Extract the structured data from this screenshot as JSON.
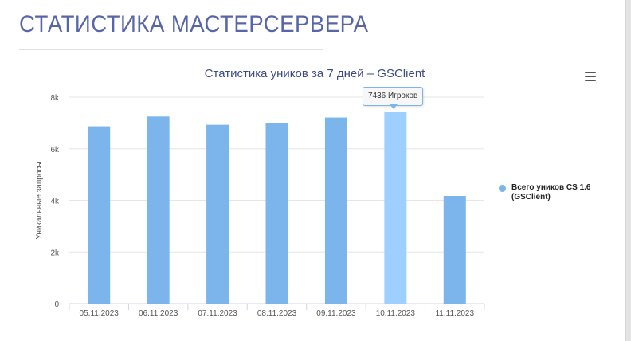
{
  "page": {
    "title": "СТАТИСТИКА МАСТЕРСЕРВЕРА"
  },
  "chart_menu": {
    "icon": "hamburger-menu-icon"
  },
  "tooltip": {
    "text": "7436 Игроков",
    "category_index": 5
  },
  "colors": {
    "bar": "#7cb5ec",
    "bar_hover": "#9dd0ff",
    "title": "#5866a8",
    "chart_title": "#3c4a85"
  },
  "chart_data": {
    "type": "bar",
    "title": "Статистика уников за 7 дней – GSClient",
    "xlabel": "",
    "ylabel": "Уникальные запросы",
    "categories": [
      "05.11.2023",
      "06.11.2023",
      "07.11.2023",
      "08.11.2023",
      "09.11.2023",
      "10.11.2023",
      "11.11.2023"
    ],
    "series": [
      {
        "name": "Всего уников CS 1.6 (GSClient)",
        "values": [
          6870,
          7250,
          6930,
          6980,
          7210,
          7436,
          4170
        ]
      }
    ],
    "ylim": [
      0,
      8000
    ],
    "yticks": [
      0,
      2000,
      4000,
      6000,
      8000
    ],
    "ytick_labels": [
      "0",
      "2k",
      "4k",
      "6k",
      "8k"
    ],
    "grid": true,
    "legend_position": "right"
  }
}
